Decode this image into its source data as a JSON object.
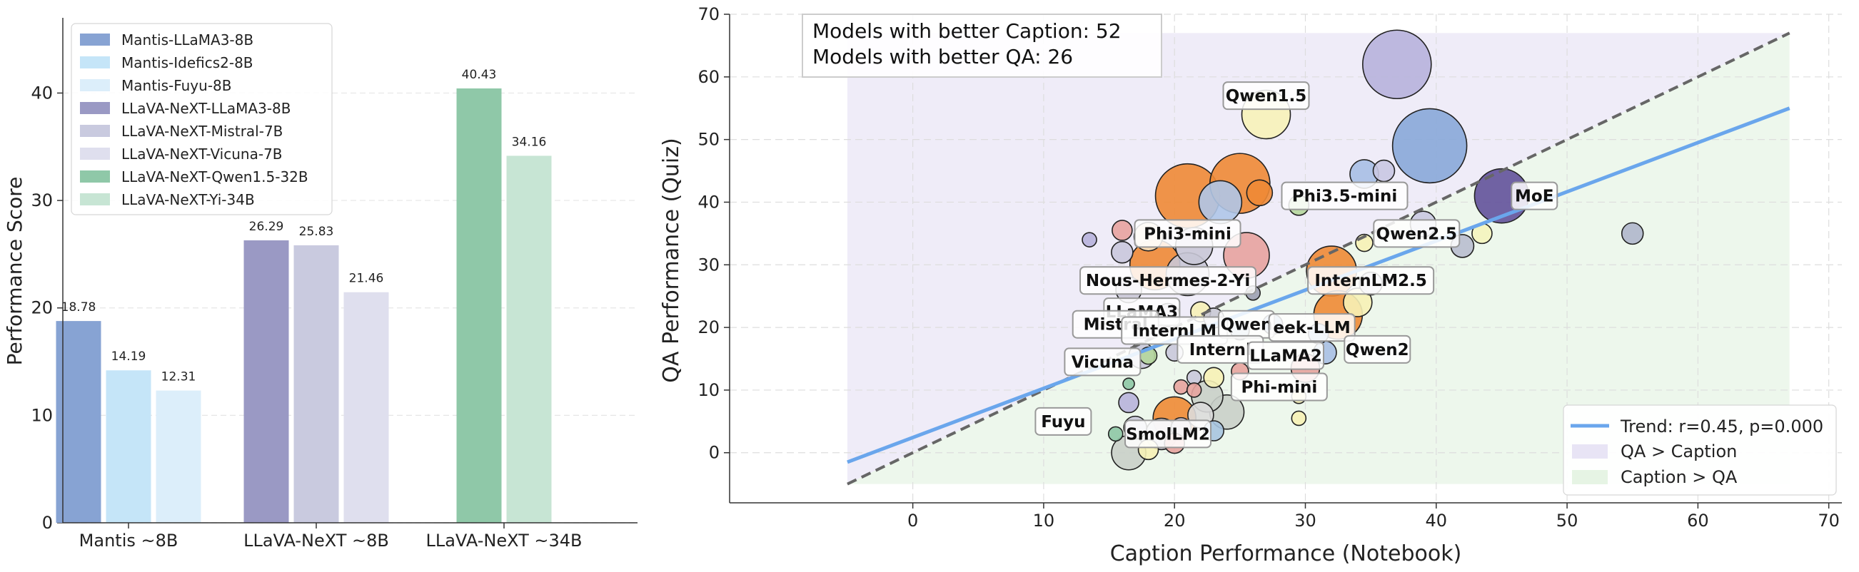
{
  "chart_data": [
    {
      "type": "bar",
      "ylabel": "Performance Score",
      "ylim": [
        0,
        47
      ],
      "yticks": [
        0,
        10,
        20,
        30,
        40
      ],
      "grid": true,
      "legend_position": "top-left",
      "groups": [
        {
          "label": "Mantis ~8B",
          "bars": [
            {
              "name": "Mantis-LLaMA3-8B",
              "value": 18.78,
              "label": "18.78",
              "color": "#87A3D3"
            },
            {
              "name": "Mantis-Idefics2-8B",
              "value": 14.19,
              "label": "14.19",
              "color": "#C5E5F8"
            },
            {
              "name": "Mantis-Fuyu-8B",
              "value": 12.31,
              "label": "12.31",
              "color": "#DCEEFA"
            }
          ]
        },
        {
          "label": "LLaVA-NeXT ~8B",
          "bars": [
            {
              "name": "LLaVA-NeXT-LLaMA3-8B",
              "value": 26.29,
              "label": "26.29",
              "color": "#9A99C4"
            },
            {
              "name": "LLaVA-NeXT-Mistral-7B",
              "value": 25.83,
              "label": "25.83",
              "color": "#C9CADF"
            },
            {
              "name": "LLaVA-NeXT-Vicuna-7B",
              "value": 21.46,
              "label": "21.46",
              "color": "#DFDFEE"
            }
          ]
        },
        {
          "label": "LLaVA-NeXT ~34B",
          "bars": [
            {
              "name": "LLaVA-NeXT-Qwen1.5-32B",
              "value": 40.43,
              "label": "40.43",
              "color": "#8FC8A8"
            },
            {
              "name": "LLaVA-NeXT-Yi-34B",
              "value": 34.16,
              "label": "34.16",
              "color": "#C7E5D4"
            }
          ]
        }
      ],
      "legend": [
        {
          "name": "Mantis-LLaMA3-8B",
          "color": "#87A3D3"
        },
        {
          "name": "Mantis-Idefics2-8B",
          "color": "#C5E5F8"
        },
        {
          "name": "Mantis-Fuyu-8B",
          "color": "#DCEEFA"
        },
        {
          "name": "LLaVA-NeXT-LLaMA3-8B",
          "color": "#9A99C4"
        },
        {
          "name": "LLaVA-NeXT-Mistral-7B",
          "color": "#C9CADF"
        },
        {
          "name": "LLaVA-NeXT-Vicuna-7B",
          "color": "#DFDFEE"
        },
        {
          "name": "LLaVA-NeXT-Qwen1.5-32B",
          "color": "#8FC8A8"
        },
        {
          "name": "LLaVA-NeXT-Yi-34B",
          "color": "#C7E5D4"
        }
      ]
    },
    {
      "type": "scatter",
      "xlabel": "Caption Performance (Notebook)",
      "ylabel": "QA Performance (Quiz)",
      "xlim": [
        -14,
        71
      ],
      "ylim": [
        -8,
        70
      ],
      "xticks": [
        0,
        10,
        20,
        30,
        40,
        50,
        60,
        70
      ],
      "yticks": [
        0,
        10,
        20,
        30,
        40,
        50,
        60,
        70
      ],
      "grid": true,
      "info_box": [
        "Models with better Caption: 52",
        "Models with better QA: 26"
      ],
      "regions": [
        {
          "name": "QA > Caption",
          "color": "#E8E4F5"
        },
        {
          "name": "Caption > QA",
          "color": "#E6F4E4"
        }
      ],
      "diagonal": {
        "x": [
          -5,
          67
        ],
        "y": [
          -5,
          67
        ],
        "color": "#666666",
        "style": "dashed"
      },
      "trend": {
        "legend": "Trend: r=0.45, p=0.000",
        "x": [
          -5,
          67
        ],
        "y": [
          -1.5,
          55
        ],
        "color": "#6AA6EC"
      },
      "legend_position": "bottom-right",
      "points": [
        {
          "x": 37.0,
          "y": 62.0,
          "size": 48,
          "color": "#B7B3DC"
        },
        {
          "x": 27.0,
          "y": 54.0,
          "size": 34,
          "color": "#F7F3B8"
        },
        {
          "x": 39.5,
          "y": 49.0,
          "size": 52,
          "color": "#88A8D8"
        },
        {
          "x": 25.0,
          "y": 43.0,
          "size": 42,
          "color": "#EE8A35"
        },
        {
          "x": 21.0,
          "y": 41.0,
          "size": 45,
          "color": "#EE8A35"
        },
        {
          "x": 23.5,
          "y": 40.0,
          "size": 30,
          "color": "#AFC6E8"
        },
        {
          "x": 26.5,
          "y": 41.5,
          "size": 18,
          "color": "#EE8A35"
        },
        {
          "x": 34.5,
          "y": 44.5,
          "size": 20,
          "color": "#A7BFE4"
        },
        {
          "x": 36.0,
          "y": 45.0,
          "size": 15,
          "color": "#C9C8E2"
        },
        {
          "x": 45.0,
          "y": 41.0,
          "size": 38,
          "color": "#62519B"
        },
        {
          "x": 29.5,
          "y": 39.5,
          "size": 14,
          "color": "#B5D79C"
        },
        {
          "x": 39.0,
          "y": 36.5,
          "size": 18,
          "color": "#C9C8E2"
        },
        {
          "x": 42.0,
          "y": 33.0,
          "size": 16,
          "color": "#B8BCCF"
        },
        {
          "x": 43.5,
          "y": 35.0,
          "size": 14,
          "color": "#F4F4BE"
        },
        {
          "x": 55.0,
          "y": 35.0,
          "size": 15,
          "color": "#AFB6CC"
        },
        {
          "x": 34.5,
          "y": 33.5,
          "size": 12,
          "color": "#F6F1B6"
        },
        {
          "x": 16.0,
          "y": 35.5,
          "size": 14,
          "color": "#E7A39F"
        },
        {
          "x": 13.5,
          "y": 34.0,
          "size": 10,
          "color": "#B7B3DC"
        },
        {
          "x": 18.0,
          "y": 34.5,
          "size": 20,
          "color": "#F7E3C0"
        },
        {
          "x": 21.5,
          "y": 33.0,
          "size": 26,
          "color": "#C9C8D6"
        },
        {
          "x": 16.0,
          "y": 32.0,
          "size": 15,
          "color": "#C9C8DC"
        },
        {
          "x": 18.5,
          "y": 30.0,
          "size": 35,
          "color": "#EE8A35"
        },
        {
          "x": 25.5,
          "y": 31.5,
          "size": 32,
          "color": "#E7A39F"
        },
        {
          "x": 21.0,
          "y": 28.5,
          "size": 30,
          "color": "#C9C8D6"
        },
        {
          "x": 32.0,
          "y": 29.0,
          "size": 35,
          "color": "#EE8A35"
        },
        {
          "x": 35.0,
          "y": 27.0,
          "size": 16,
          "color": "#D3D3E0"
        },
        {
          "x": 16.5,
          "y": 26.0,
          "size": 18,
          "color": "#C9C8D6"
        },
        {
          "x": 26.0,
          "y": 25.5,
          "size": 10,
          "color": "#9C9FB3"
        },
        {
          "x": 22.0,
          "y": 22.5,
          "size": 14,
          "color": "#F6F1B6"
        },
        {
          "x": 19.5,
          "y": 22.0,
          "size": 16,
          "color": "#C9C8D6"
        },
        {
          "x": 23.0,
          "y": 21.5,
          "size": 14,
          "color": "#C9C8D6"
        },
        {
          "x": 32.5,
          "y": 22.0,
          "size": 34,
          "color": "#EE8A35"
        },
        {
          "x": 34.0,
          "y": 24.0,
          "size": 20,
          "color": "#F6F1B6"
        },
        {
          "x": 25.0,
          "y": 19.5,
          "size": 13,
          "color": "#B8C6D9"
        },
        {
          "x": 27.5,
          "y": 20.5,
          "size": 14,
          "color": "#A7BFE4"
        },
        {
          "x": 31.0,
          "y": 19.0,
          "size": 14,
          "color": "#A7BFE4"
        },
        {
          "x": 31.5,
          "y": 16.0,
          "size": 16,
          "color": "#A7BFE4"
        },
        {
          "x": 30.0,
          "y": 13.5,
          "size": 20,
          "color": "#E7A39F"
        },
        {
          "x": 20.0,
          "y": 16.0,
          "size": 12,
          "color": "#C9C8DC"
        },
        {
          "x": 17.5,
          "y": 15.5,
          "size": 18,
          "color": "#C9C8DC"
        },
        {
          "x": 18.0,
          "y": 15.5,
          "size": 12,
          "color": "#B5D79C"
        },
        {
          "x": 21.5,
          "y": 12.0,
          "size": 10,
          "color": "#C9C8DC"
        },
        {
          "x": 23.0,
          "y": 12.0,
          "size": 14,
          "color": "#F6F1B6"
        },
        {
          "x": 25.0,
          "y": 13.0,
          "size": 12,
          "color": "#E7A39F"
        },
        {
          "x": 16.5,
          "y": 11.0,
          "size": 8,
          "color": "#8DC7A5"
        },
        {
          "x": 20.5,
          "y": 10.5,
          "size": 10,
          "color": "#E7A39F"
        },
        {
          "x": 21.5,
          "y": 10.0,
          "size": 10,
          "color": "#E7A39F"
        },
        {
          "x": 22.5,
          "y": 9.0,
          "size": 22,
          "color": "#C9CFC9"
        },
        {
          "x": 16.5,
          "y": 8.0,
          "size": 14,
          "color": "#B7B3DC"
        },
        {
          "x": 29.5,
          "y": 9.0,
          "size": 10,
          "color": "#F6F1B6"
        },
        {
          "x": 24.0,
          "y": 6.5,
          "size": 24,
          "color": "#C9CFC9"
        },
        {
          "x": 22.0,
          "y": 6.0,
          "size": 18,
          "color": "#DCDCDC"
        },
        {
          "x": 20.5,
          "y": 4.0,
          "size": 14,
          "color": "#C9C8DC"
        },
        {
          "x": 17.0,
          "y": 4.0,
          "size": 16,
          "color": "#C9C8DC"
        },
        {
          "x": 23.0,
          "y": 3.5,
          "size": 14,
          "color": "#A7C4E0"
        },
        {
          "x": 15.5,
          "y": 3.0,
          "size": 10,
          "color": "#8DC7A5"
        },
        {
          "x": 20.0,
          "y": 5.5,
          "size": 30,
          "color": "#EE8A35"
        },
        {
          "x": 19.0,
          "y": 3.0,
          "size": 22,
          "color": "#C9C8D6"
        },
        {
          "x": 29.5,
          "y": 5.5,
          "size": 10,
          "color": "#F6F1B6"
        },
        {
          "x": 18.0,
          "y": 0.5,
          "size": 14,
          "color": "#F6F1B6"
        },
        {
          "x": 20.0,
          "y": 1.5,
          "size": 14,
          "color": "#E7A39F"
        },
        {
          "x": 16.5,
          "y": 0.0,
          "size": 24,
          "color": "#C9CFC9"
        }
      ],
      "labels": [
        {
          "text": "Qwen1.5",
          "x": 27.0,
          "y": 57.0
        },
        {
          "text": "MoE",
          "x": 47.5,
          "y": 41.0
        },
        {
          "text": "Phi3.5-mini",
          "x": 33.0,
          "y": 41.0
        },
        {
          "text": "Phi3-mini",
          "x": 21.0,
          "y": 35.0
        },
        {
          "text": "Qwen2.5",
          "x": 38.5,
          "y": 35.0
        },
        {
          "text": "Nous-Hermes-2-Yi",
          "x": 19.5,
          "y": 27.5
        },
        {
          "text": "InternLM2.5",
          "x": 35.0,
          "y": 27.5
        },
        {
          "text": "LLaMA3",
          "x": 17.5,
          "y": 22.5
        },
        {
          "text": "Mistral",
          "x": 15.5,
          "y": 20.5
        },
        {
          "text": "Internl M",
          "x": 20.0,
          "y": 19.5
        },
        {
          "text": "Qwen",
          "x": 25.5,
          "y": 20.5
        },
        {
          "text": "eek-LLM",
          "x": 30.5,
          "y": 20.0
        },
        {
          "text": "Qwen2",
          "x": 35.5,
          "y": 16.5
        },
        {
          "text": "Internl",
          "x": 23.5,
          "y": 16.5
        },
        {
          "text": "LLaMA2",
          "x": 28.5,
          "y": 15.5
        },
        {
          "text": "Vicuna",
          "x": 14.5,
          "y": 14.5
        },
        {
          "text": "Phi-mini",
          "x": 28.0,
          "y": 10.5
        },
        {
          "text": "Fuyu",
          "x": 11.5,
          "y": 5.0
        },
        {
          "text": "SmolLM2",
          "x": 19.5,
          "y": 3.0
        }
      ]
    }
  ]
}
